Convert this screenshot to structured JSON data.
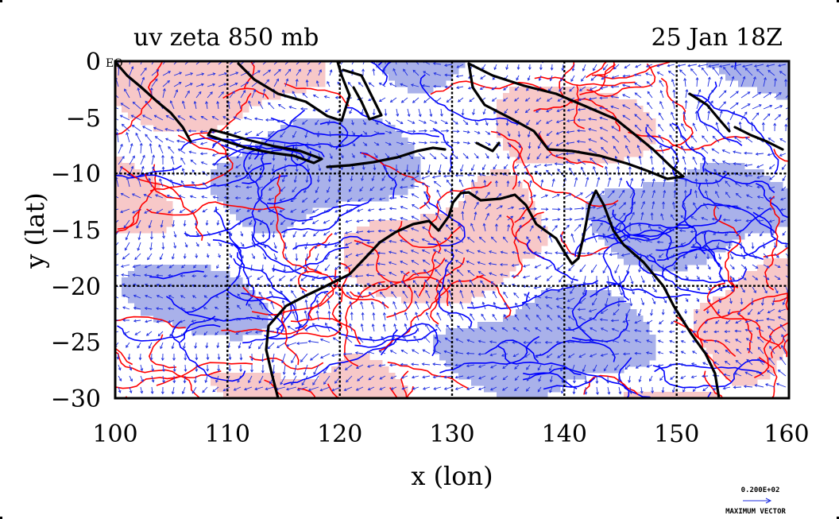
{
  "title_left": "uv zeta 850 mb",
  "title_right": "25 Jan 18Z",
  "xlabel": "x (lon)",
  "ylabel": "y (lat)",
  "x_ticks": [
    "100",
    "110",
    "120",
    "130",
    "140",
    "150",
    "160"
  ],
  "y_ticks": [
    "0",
    "−5",
    "−10",
    "−15",
    "−20",
    "−25",
    "−30"
  ],
  "equator_label": "EQ",
  "reference_vector": {
    "value": "0.200E+02",
    "label": "MAXIMUM VECTOR"
  },
  "map": {
    "lon_range": [
      100,
      160
    ],
    "lat_range": [
      -30,
      0
    ],
    "grid_lon": [
      110,
      120,
      130,
      140,
      150
    ],
    "grid_lat": [
      -10,
      -20
    ],
    "colors": {
      "positive_fill": "#f7c8c8",
      "negative_fill": "#a9b1ea",
      "positive_contour": "#ff0000",
      "negative_contour": "#0000ff",
      "vectors": "#1f2fe0",
      "coastline": "#000000"
    }
  }
}
